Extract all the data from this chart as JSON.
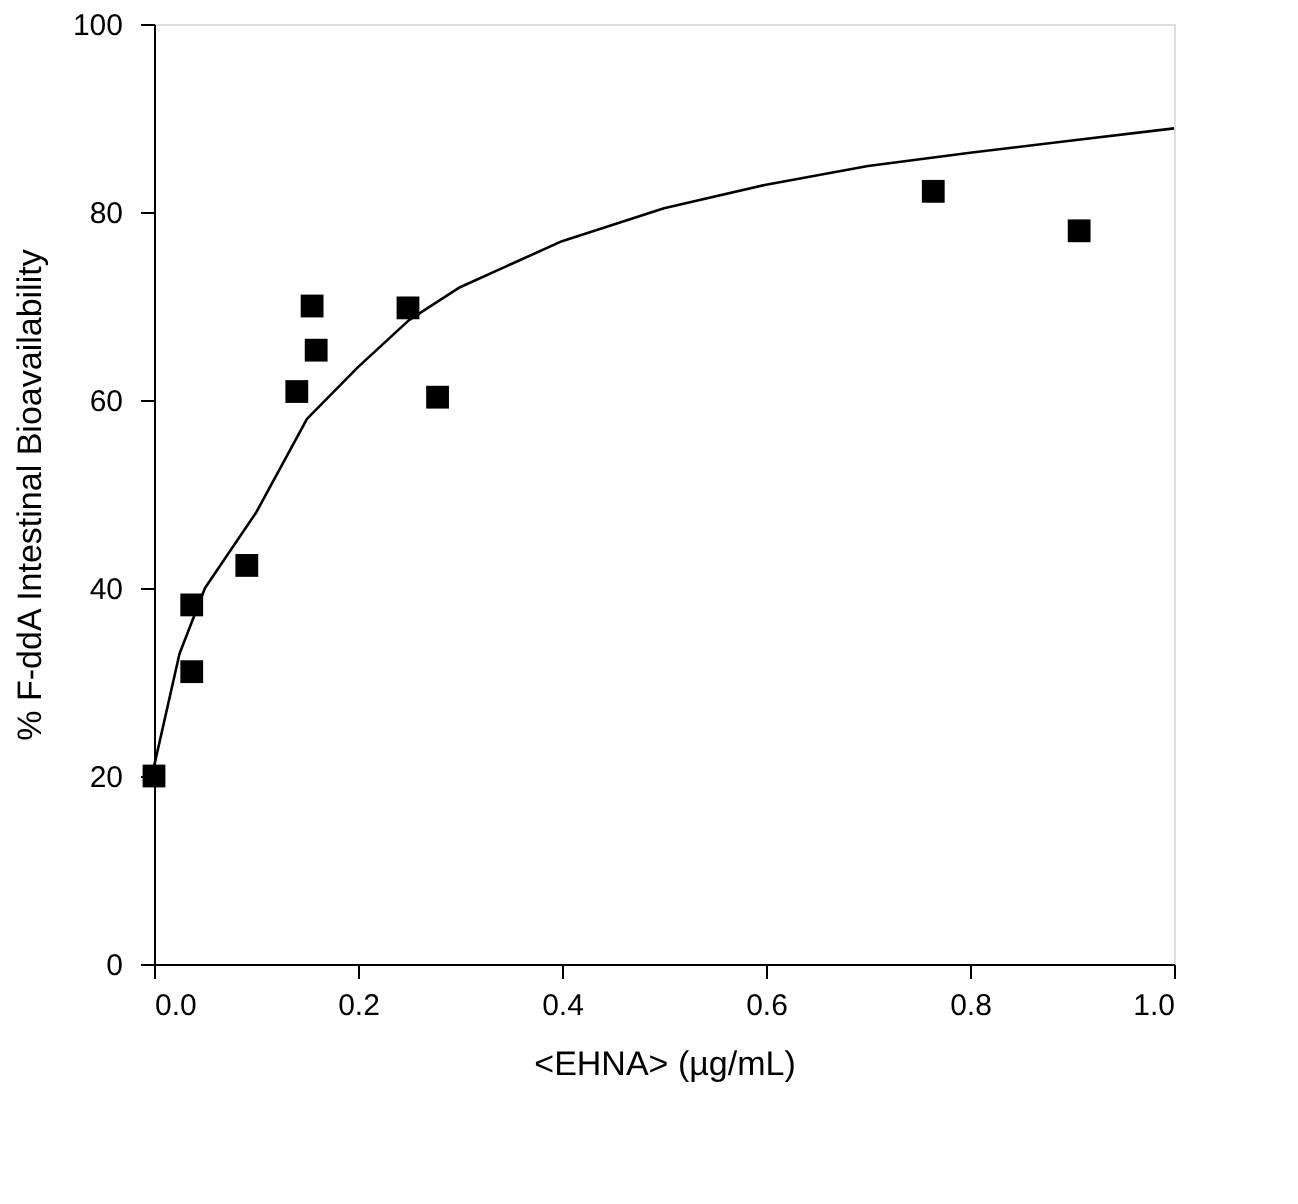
{
  "chart_data": {
    "type": "scatter",
    "xlabel": "<EHNA> (µg/mL)",
    "ylabel": "% F-ddA Intestinal Bioavailability",
    "xlim": [
      0,
      1.0
    ],
    "ylim": [
      0,
      100
    ],
    "xticks": [
      {
        "value": 0,
        "label": "0.0"
      },
      0.2,
      0.4,
      0.6,
      0.8,
      {
        "value": 1.0,
        "label": "1.0"
      }
    ],
    "yticks": [
      0,
      20,
      40,
      60,
      80,
      100
    ],
    "grid": false,
    "series": [
      {
        "marker": "square",
        "color": "#000000",
        "x": [
          0,
          0.037,
          0.037,
          0.091,
          0.14,
          0.155,
          0.159,
          0.249,
          0.278,
          0.764,
          0.907
        ],
        "values": [
          20,
          31.1,
          38.2,
          42.4,
          60.9,
          70.0,
          65.3,
          69.8,
          60.3,
          82.2,
          78.0
        ]
      },
      {
        "type": "line",
        "line_style": "solid",
        "color": "#000000",
        "x": [
          0,
          0.025,
          0.05,
          0.1,
          0.15,
          0.2,
          0.25,
          0.3,
          0.4,
          0.5,
          0.6,
          0.7,
          0.8,
          0.9,
          1.0
        ],
        "values": [
          21,
          33,
          40,
          48,
          58,
          63.5,
          68.5,
          72,
          76.9,
          80.4,
          82.9,
          84.9,
          86.3,
          87.6,
          88.9
        ]
      }
    ]
  }
}
